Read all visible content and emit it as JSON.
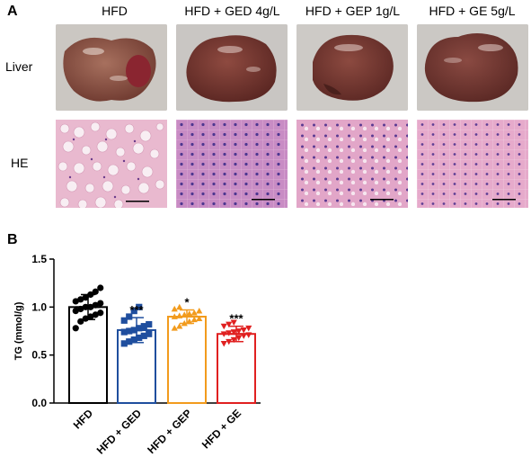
{
  "panel_a": {
    "letter": "A",
    "columns": [
      "HFD",
      "HFD + GED 4g/L",
      "HFD + GEP 1g/L",
      "HFD + GE 5g/L"
    ],
    "rows": [
      "Liver",
      "HE"
    ]
  },
  "panel_b": {
    "letter": "B"
  },
  "chart_data": {
    "type": "bar",
    "ylabel": "TG (mmol/g)",
    "ylim": [
      0,
      1.5
    ],
    "yticks": [
      "0.0",
      "0.5",
      "1.0",
      "1.5"
    ],
    "categories": [
      "HFD",
      "HFD + GED",
      "HFD + GEP",
      "HFD + GE"
    ],
    "means": [
      1.0,
      0.76,
      0.9,
      0.72
    ],
    "sd": [
      0.13,
      0.13,
      0.07,
      0.08
    ],
    "significance": [
      "",
      "***",
      "*",
      "***"
    ],
    "colors": [
      "#000000",
      "#1f4e9e",
      "#f29b1d",
      "#e02020"
    ],
    "markers": [
      "circle",
      "square",
      "triangle-up",
      "triangle-down"
    ],
    "points": [
      [
        0.78,
        0.85,
        0.88,
        0.9,
        0.92,
        0.94,
        0.96,
        0.98,
        1.0,
        1.0,
        1.02,
        1.04,
        1.06,
        1.08,
        1.1,
        1.13,
        1.16,
        1.2
      ],
      [
        0.62,
        0.64,
        0.66,
        0.68,
        0.7,
        0.72,
        0.74,
        0.75,
        0.76,
        0.78,
        0.8,
        0.82,
        0.86,
        0.9,
        0.96,
        1.0
      ],
      [
        0.78,
        0.8,
        0.83,
        0.85,
        0.87,
        0.88,
        0.9,
        0.91,
        0.92,
        0.93,
        0.94,
        0.96,
        0.98,
        1.0
      ],
      [
        0.62,
        0.64,
        0.66,
        0.68,
        0.7,
        0.71,
        0.72,
        0.73,
        0.74,
        0.75,
        0.76,
        0.78,
        0.8,
        0.82,
        0.84
      ]
    ]
  }
}
